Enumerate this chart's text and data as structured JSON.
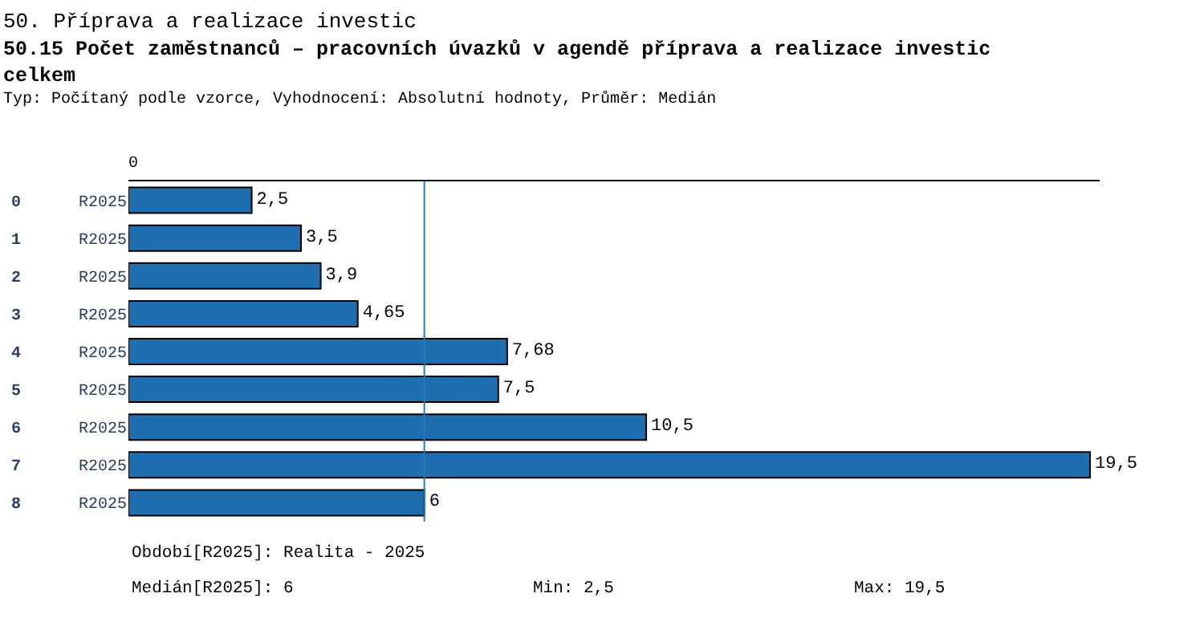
{
  "chart_data": {
    "type": "bar",
    "orientation": "horizontal",
    "title": "50. Příprava a realizace investic",
    "subtitle": "50.15 Počet zaměstnanců – pracovních úvazků v agendě příprava a realizace investic celkem",
    "categories": [
      "0 R2025",
      "1 R2025",
      "2 R2025",
      "3 R2025",
      "4 R2025",
      "5 R2025",
      "6 R2025",
      "7 R2025",
      "8 R2025"
    ],
    "values": [
      2.5,
      3.5,
      3.9,
      4.65,
      7.68,
      7.5,
      10.5,
      19.5,
      6
    ],
    "value_labels": [
      "2,5",
      "3,5",
      "3,9",
      "4,65",
      "7,68",
      "7,5",
      "10,5",
      "19,5",
      "6"
    ],
    "color": "#1f6eb0",
    "ref_lines": [
      {
        "axis": "x",
        "value": 6,
        "color": "#2a7ab0"
      }
    ],
    "annotations": [
      "Typ: Počítaný podle vzorce, Vyhodnocení: Absolutní hodnoty, Průměr: Medián",
      "Období[R2025]: Realita - 2025",
      "Medián[R2025]: 6",
      "Min: 2,5",
      "Max: 19,5",
      "0"
    ]
  }
}
